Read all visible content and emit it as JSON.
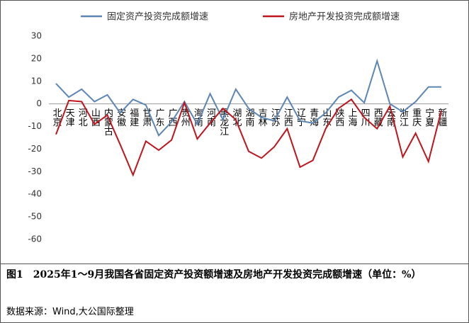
{
  "chart_data": {
    "type": "line",
    "categories": [
      "北京",
      "天津",
      "河北",
      "山西",
      "内蒙古",
      "安徽",
      "福建",
      "甘肃",
      "广东",
      "广西",
      "贵州",
      "海南",
      "河南",
      "黑龙江",
      "湖北",
      "湖南",
      "吉林",
      "江苏",
      "江西",
      "辽宁",
      "青海",
      "山东",
      "陕西",
      "上海",
      "四川",
      "西藏",
      "云南",
      "浙江",
      "重庆",
      "宁夏",
      "新疆"
    ],
    "series": [
      {
        "name": "固定资产投资完成额增速",
        "color": "#5b86b5",
        "values": [
          9,
          3,
          6.5,
          1,
          4,
          -4,
          2,
          -0.5,
          -14,
          -8,
          1,
          -9,
          4.5,
          -7,
          6.5,
          -2,
          -6,
          -7.5,
          3,
          -7.5,
          -8.5,
          -4,
          3,
          6,
          0.5,
          19,
          0,
          -3.5,
          1,
          7.5,
          7.5
        ]
      },
      {
        "name": "房地产开发投资完成额增速",
        "color": "#c0141c",
        "values": [
          -13.5,
          1.5,
          1,
          -9,
          -5,
          -18,
          -31.5,
          -16.5,
          -20.5,
          -16,
          0.5,
          -15.5,
          -8.5,
          -2,
          -7,
          -21,
          -24,
          -19,
          -11,
          -28,
          -25,
          -11,
          -2,
          2,
          -6,
          -11,
          -1,
          -23.5,
          -13,
          -25.5,
          -3
        ]
      }
    ],
    "ylim": [
      -60,
      30
    ],
    "yticks": [
      30,
      20,
      10,
      0,
      -10,
      -20,
      -30,
      -40,
      -50,
      -60
    ],
    "caption": "图1　2025年1～9月我国各省固定资产投资额增速及房地产开发投资完成额增速（单位：%）",
    "source": "数据来源：Wind,大公国际整理"
  }
}
